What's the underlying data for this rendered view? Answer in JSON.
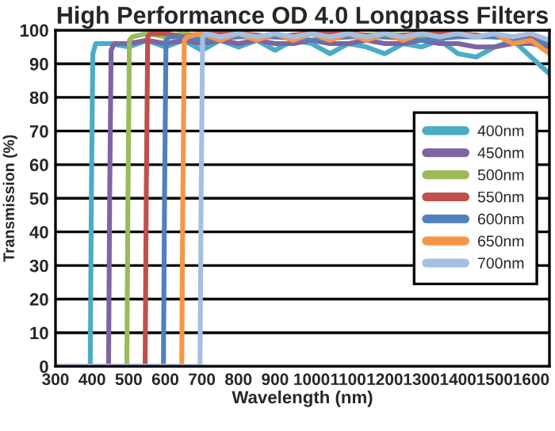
{
  "chart_data": {
    "type": "line",
    "title": "High Performance OD 4.0 Longpass Filters",
    "xlabel": "Wavelength (nm)",
    "ylabel": "Transmission (%)",
    "xlim": [
      300,
      1650
    ],
    "xticks": [
      300,
      400,
      500,
      600,
      700,
      800,
      900,
      1000,
      1100,
      1200,
      1300,
      1400,
      1500,
      1600
    ],
    "ylim": [
      0,
      100
    ],
    "yticks": [
      0,
      10,
      20,
      30,
      40,
      50,
      60,
      70,
      80,
      90,
      100
    ],
    "grid": "y",
    "legend": "right",
    "marker": "none",
    "line_style": "solid",
    "series": [
      {
        "name": "400nm",
        "color": "#4bacc6",
        "x": [
          300,
          395,
          398,
          402,
          410,
          450,
          500,
          550,
          600,
          650,
          700,
          750,
          800,
          850,
          900,
          950,
          1000,
          1050,
          1100,
          1150,
          1200,
          1250,
          1300,
          1350,
          1400,
          1450,
          1500,
          1550,
          1600,
          1650
        ],
        "values": [
          0,
          0,
          50,
          93,
          96,
          96,
          95,
          97,
          95,
          97,
          94,
          97,
          95,
          97,
          94,
          97,
          96,
          93,
          96,
          95,
          93,
          96,
          95,
          97,
          93,
          92,
          95,
          97,
          92,
          87
        ]
      },
      {
        "name": "450nm",
        "color": "#8064a2",
        "x": [
          300,
          445,
          448,
          452,
          460,
          500,
          550,
          600,
          650,
          700,
          750,
          800,
          850,
          900,
          950,
          1000,
          1050,
          1100,
          1150,
          1200,
          1250,
          1300,
          1350,
          1400,
          1450,
          1500,
          1550,
          1600,
          1650
        ],
        "values": [
          0,
          0,
          50,
          94,
          96,
          96,
          97,
          96,
          97,
          96,
          97,
          96,
          97,
          96,
          96,
          97,
          96,
          96,
          97,
          96,
          96,
          97,
          96,
          96,
          95,
          95,
          96,
          96,
          95
        ]
      },
      {
        "name": "500nm",
        "color": "#9bbb59",
        "x": [
          300,
          495,
          498,
          502,
          510,
          550,
          600,
          650,
          700,
          800,
          900,
          1000,
          1100,
          1200,
          1300,
          1400,
          1500,
          1600,
          1650
        ],
        "values": [
          0,
          0,
          50,
          97,
          98,
          99,
          98,
          99,
          98,
          99,
          98,
          99,
          98,
          99,
          98,
          99,
          98,
          98,
          97
        ]
      },
      {
        "name": "550nm",
        "color": "#c0504d",
        "x": [
          300,
          545,
          548,
          552,
          560,
          600,
          650,
          700,
          800,
          900,
          1000,
          1100,
          1200,
          1300,
          1400,
          1500,
          1600,
          1650
        ],
        "values": [
          0,
          0,
          50,
          98,
          99,
          99,
          98,
          99,
          99,
          98,
          99,
          99,
          98,
          99,
          99,
          98,
          98,
          97
        ]
      },
      {
        "name": "600nm",
        "color": "#4f81bd",
        "x": [
          300,
          595,
          598,
          602,
          610,
          650,
          700,
          800,
          900,
          1000,
          1100,
          1200,
          1300,
          1400,
          1500,
          1600,
          1650
        ],
        "values": [
          0,
          0,
          50,
          97,
          98,
          98,
          97,
          98,
          98,
          97,
          98,
          98,
          97,
          98,
          98,
          97,
          96
        ]
      },
      {
        "name": "650nm",
        "color": "#f79646",
        "x": [
          300,
          645,
          648,
          652,
          660,
          700,
          750,
          800,
          850,
          900,
          950,
          1000,
          1050,
          1100,
          1150,
          1200,
          1250,
          1300,
          1350,
          1400,
          1450,
          1500,
          1550,
          1600,
          1650
        ],
        "values": [
          0,
          0,
          50,
          97,
          98,
          99,
          97,
          99,
          97,
          99,
          97,
          99,
          97,
          99,
          97,
          99,
          97,
          99,
          98,
          99,
          98,
          99,
          96,
          97,
          93
        ]
      },
      {
        "name": "700nm",
        "color": "#a5bfe3",
        "x": [
          300,
          695,
          698,
          702,
          710,
          750,
          800,
          850,
          900,
          950,
          1000,
          1050,
          1100,
          1150,
          1200,
          1250,
          1300,
          1350,
          1400,
          1450,
          1500,
          1550,
          1600,
          1650
        ],
        "values": [
          0,
          0,
          50,
          98,
          99,
          98,
          99,
          98,
          99,
          98,
          99,
          98,
          99,
          98,
          99,
          98,
          99,
          98,
          99,
          98,
          99,
          98,
          99,
          97
        ]
      }
    ]
  }
}
